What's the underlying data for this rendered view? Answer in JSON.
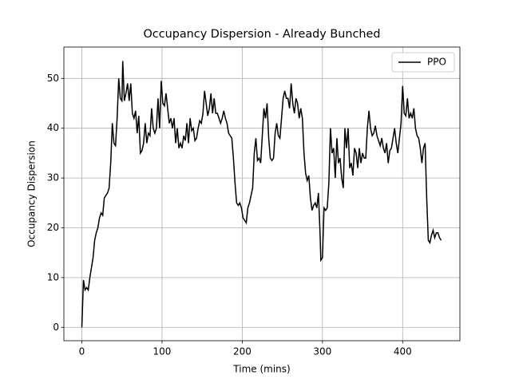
{
  "chart_data": {
    "type": "line",
    "title": "Occupancy Dispersion - Already Bunched",
    "x_label": "Time (mins)",
    "y_label": "Occupancy Dispersion",
    "x": [
      0,
      2,
      4,
      6,
      8,
      10,
      12,
      14,
      16,
      18,
      20,
      22,
      24,
      26,
      28,
      30,
      32,
      34,
      36,
      38,
      40,
      42,
      44,
      46,
      48,
      50,
      51,
      53,
      55,
      57,
      59,
      61,
      63,
      65,
      67,
      69,
      71,
      73,
      75,
      77,
      79,
      81,
      83,
      85,
      87,
      89,
      91,
      93,
      95,
      97,
      99,
      101,
      103,
      105,
      107,
      109,
      111,
      113,
      115,
      117,
      119,
      121,
      123,
      125,
      127,
      129,
      131,
      133,
      135,
      137,
      139,
      141,
      143,
      145,
      147,
      149,
      151,
      153,
      155,
      157,
      159,
      161,
      163,
      165,
      167,
      169,
      171,
      173,
      175,
      177,
      179,
      181,
      183,
      185,
      187,
      189,
      191,
      193,
      195,
      197,
      199,
      201,
      203,
      205,
      207,
      209,
      211,
      213,
      215,
      217,
      219,
      221,
      223,
      225,
      227,
      229,
      231,
      233,
      235,
      237,
      239,
      241,
      243,
      245,
      247,
      249,
      251,
      253,
      255,
      257,
      259,
      261,
      263,
      265,
      267,
      269,
      271,
      273,
      275,
      277,
      279,
      281,
      283,
      285,
      287,
      289,
      291,
      293,
      295,
      297,
      298,
      300,
      302,
      304,
      306,
      308,
      310,
      312,
      314,
      316,
      318,
      320,
      322,
      324,
      326,
      328,
      330,
      332,
      334,
      336,
      338,
      340,
      342,
      344,
      346,
      348,
      350,
      352,
      354,
      356,
      358,
      360,
      362,
      364,
      366,
      368,
      370,
      372,
      374,
      376,
      378,
      380,
      382,
      384,
      386,
      388,
      390,
      392,
      394,
      396,
      398,
      400,
      402,
      404,
      406,
      408,
      410,
      412,
      414,
      416,
      418,
      420,
      422,
      424,
      426,
      428,
      430,
      432,
      434,
      436,
      438,
      440,
      442,
      444,
      446,
      448
    ],
    "series": [
      {
        "name": "PPO",
        "color": "#000000",
        "values": [
          0,
          9.5,
          7.5,
          8,
          7.5,
          10,
          12,
          14,
          17.5,
          19,
          20,
          22,
          23,
          22.5,
          26,
          26.5,
          27,
          28,
          33,
          41,
          37,
          36.5,
          42,
          50,
          46,
          45.5,
          53.5,
          45.5,
          47,
          49,
          45.5,
          49,
          43,
          42,
          43.5,
          39,
          42.5,
          35,
          35.5,
          37,
          41,
          37,
          39,
          38.5,
          44,
          40,
          39,
          40,
          46,
          40,
          49.5,
          45,
          44.5,
          47,
          44,
          41,
          42,
          40,
          42,
          37,
          40,
          36,
          37,
          36,
          38.5,
          37.5,
          41,
          37,
          42,
          39.5,
          40,
          37.5,
          38,
          40,
          41.5,
          41,
          43,
          47.5,
          45,
          42.5,
          44,
          47,
          43,
          46,
          43,
          43,
          42,
          41,
          42,
          43.5,
          42,
          41,
          39,
          38.5,
          38,
          34,
          29,
          25,
          24.5,
          25,
          24,
          22,
          21.5,
          21,
          24,
          25,
          26.5,
          28,
          35,
          38,
          33.5,
          34,
          33,
          38.5,
          44,
          42,
          45,
          38,
          34,
          33.5,
          34,
          39,
          41,
          38.5,
          38,
          42,
          46,
          47.5,
          46,
          46,
          44,
          49,
          45,
          43,
          46,
          45,
          42,
          44,
          42,
          35,
          31,
          29.5,
          30.5,
          26,
          23.5,
          24.5,
          25,
          24,
          27,
          19,
          13.5,
          14,
          24,
          23.5,
          24,
          29,
          40,
          35,
          36,
          30,
          38,
          33,
          34,
          30,
          28,
          40,
          36,
          40,
          32,
          33,
          30.5,
          36,
          35,
          32,
          36,
          33,
          35,
          34,
          34,
          40,
          43.5,
          40,
          38.5,
          39,
          40.5,
          38.5,
          37.5,
          36.5,
          38,
          36,
          35,
          37,
          33,
          35.5,
          36,
          38,
          40,
          37,
          35,
          38,
          41,
          48.5,
          43,
          42.5,
          46,
          42,
          43,
          42,
          44,
          40,
          38.5,
          38,
          36,
          33,
          36,
          37,
          26,
          17.5,
          17,
          18.5,
          19.5,
          18,
          19,
          19,
          18,
          17.5
        ]
      }
    ],
    "xlim": [
      -22.4,
      471.4
    ],
    "ylim": [
      -2.68,
      56.3
    ],
    "xticks": [
      0,
      100,
      200,
      300,
      400
    ],
    "yticks": [
      0,
      10,
      20,
      30,
      40,
      50
    ],
    "grid": true,
    "legend": "upper right"
  }
}
